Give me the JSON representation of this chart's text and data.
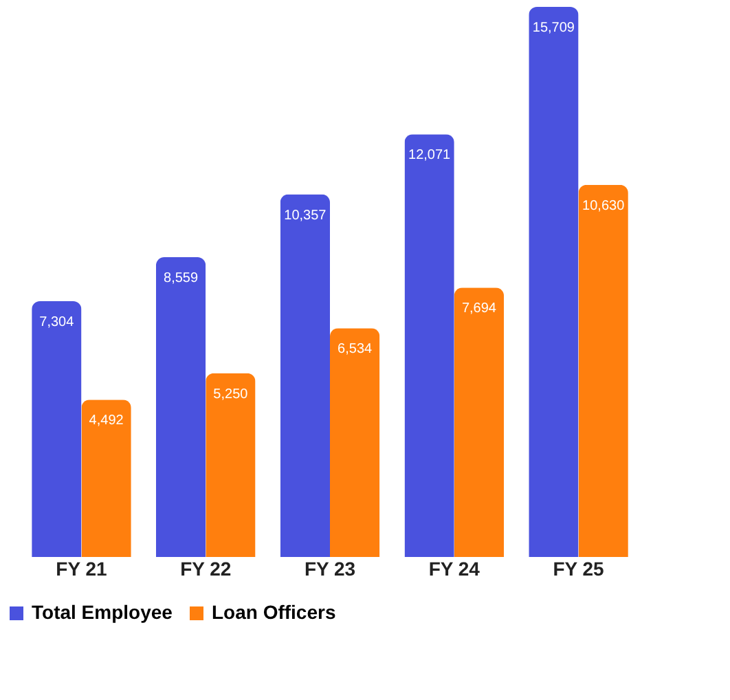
{
  "chart_data": {
    "type": "bar",
    "categories": [
      "FY 21",
      "FY 22",
      "FY 23",
      "FY 24",
      "FY 25"
    ],
    "series": [
      {
        "name": "Total Employee",
        "color": "#4a52de",
        "values": [
          7304,
          8559,
          10357,
          12071,
          15709
        ],
        "value_labels": [
          "7,304",
          "8,559",
          "10,357",
          "12,071",
          "15,709"
        ]
      },
      {
        "name": "Loan Officers",
        "color": "#ff7f0e",
        "values": [
          4492,
          5250,
          6534,
          7694,
          10630
        ],
        "value_labels": [
          "4,492",
          "5,250",
          "6,534",
          "7,694",
          "10,630"
        ]
      }
    ],
    "legend": "bottom",
    "grid": false
  }
}
